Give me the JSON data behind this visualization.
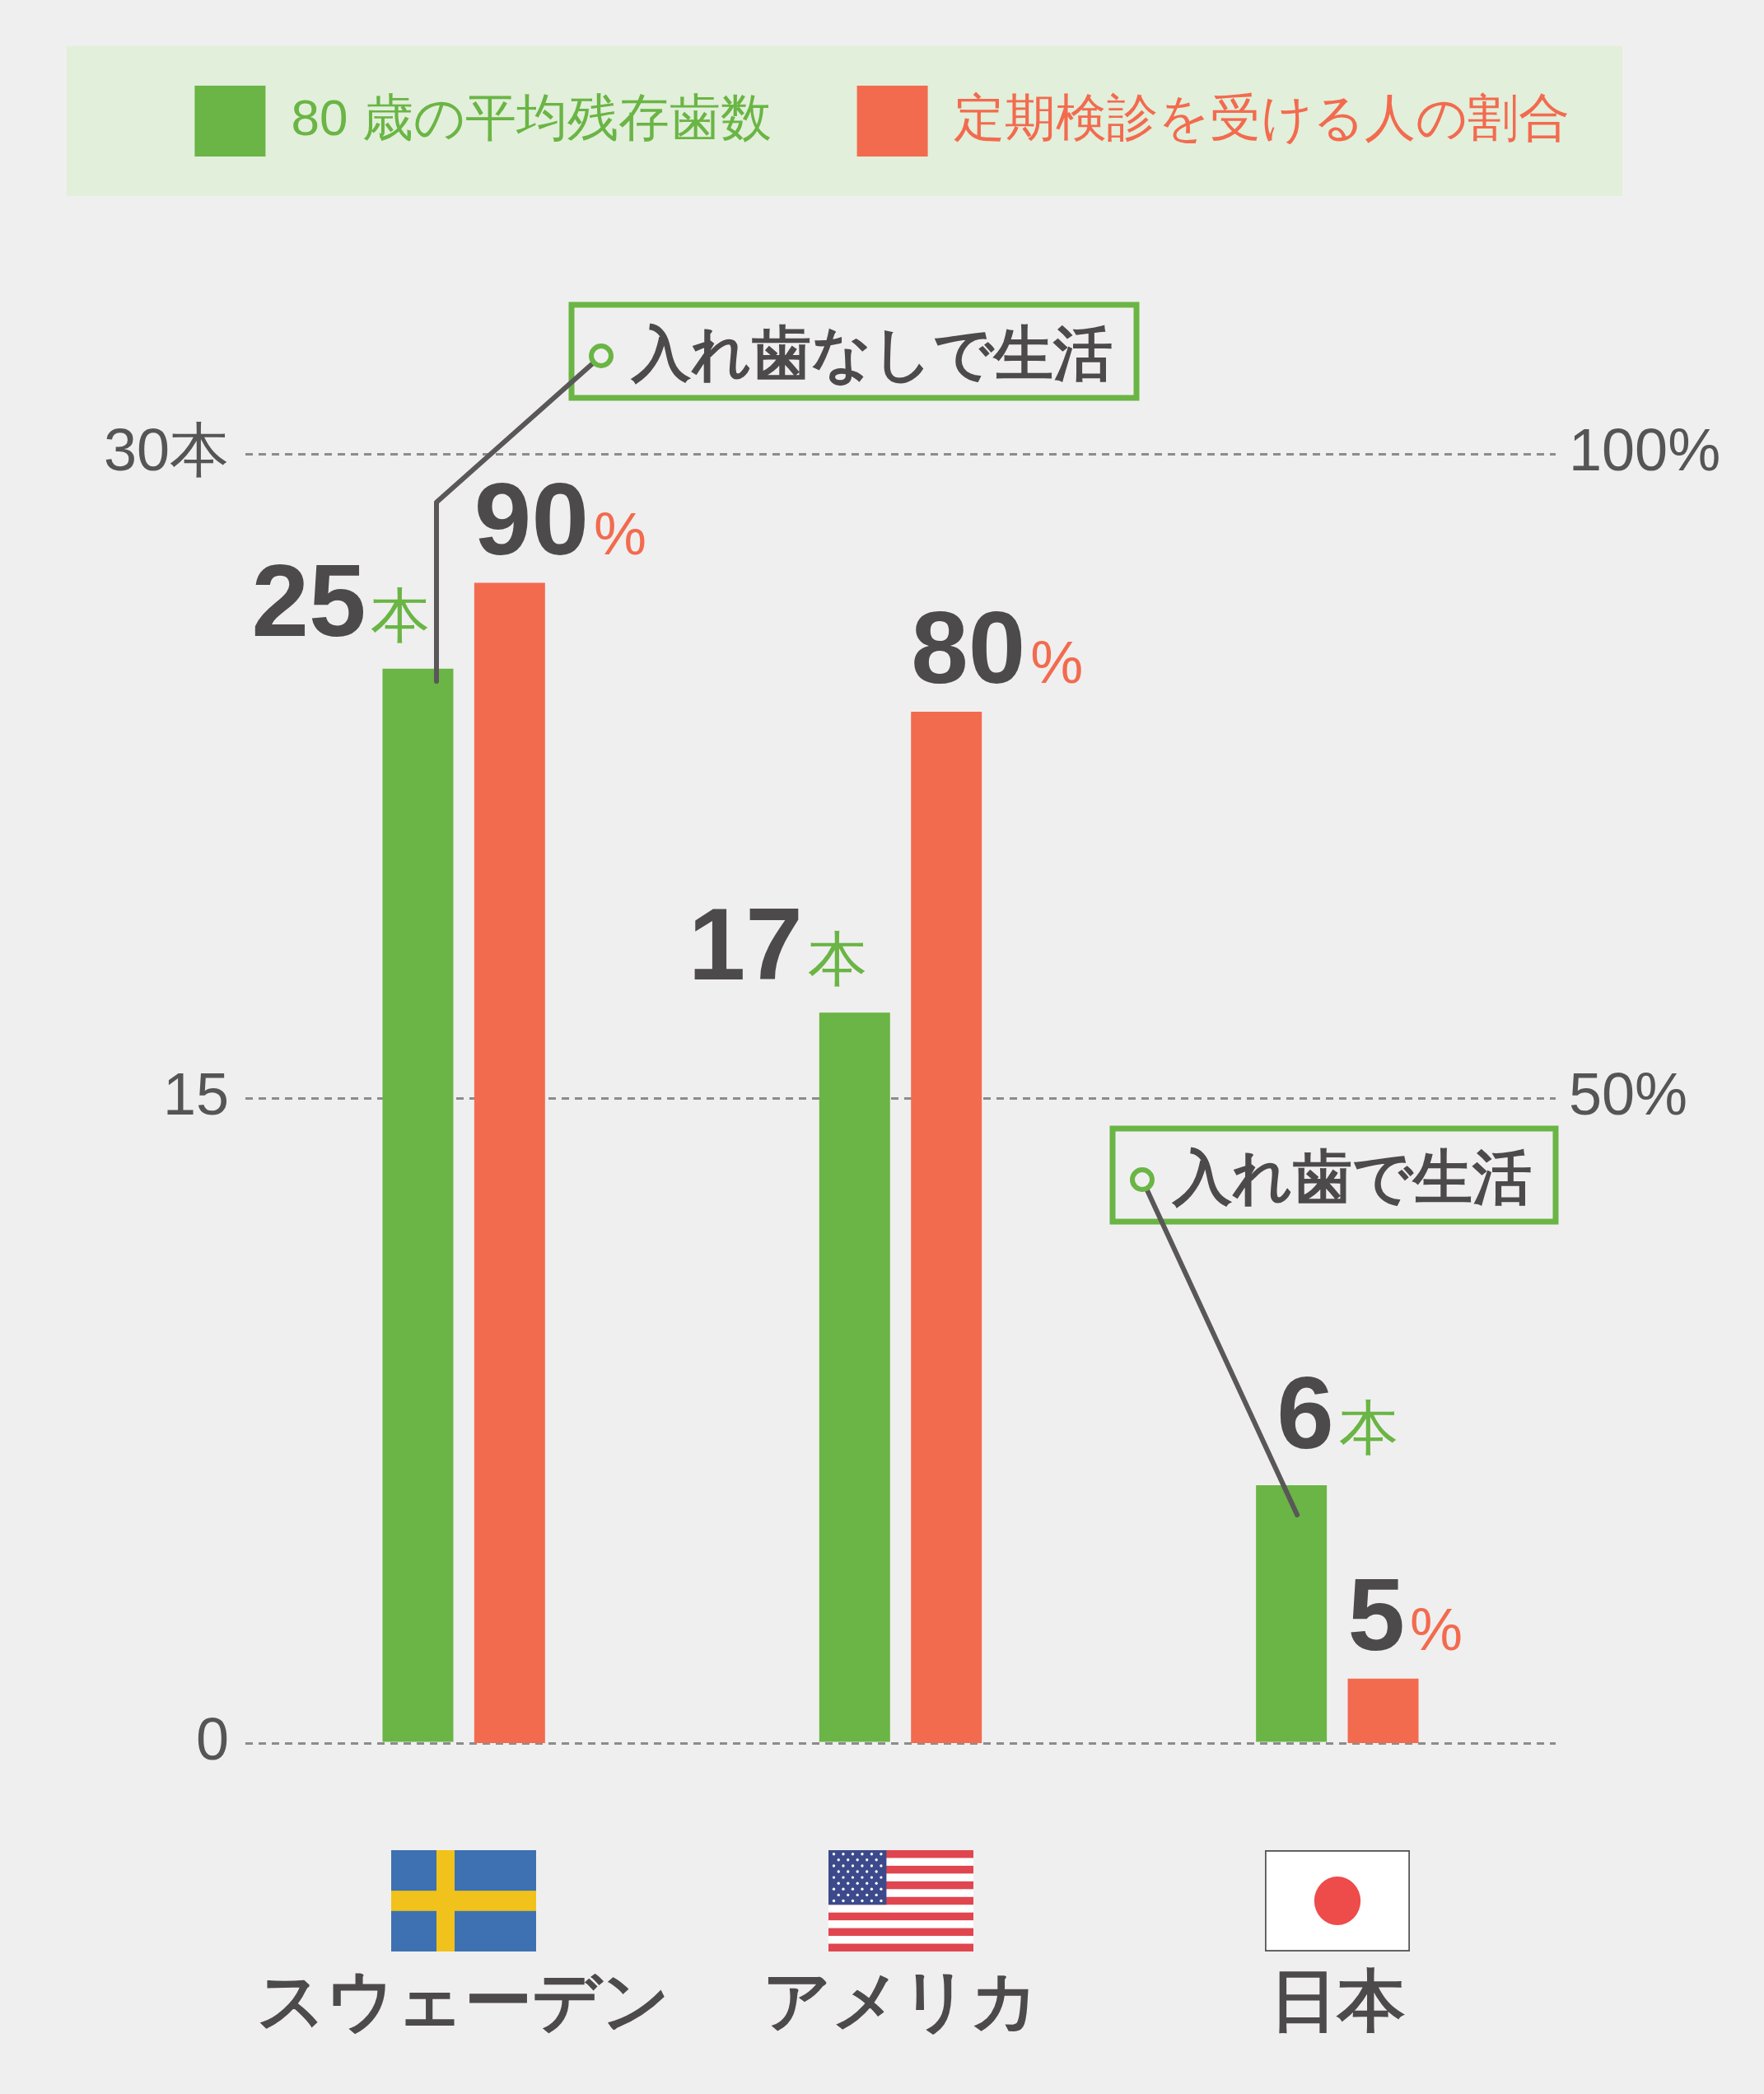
{
  "chart_data": {
    "type": "bar",
    "categories": [
      "スウェーデン",
      "アメリカ",
      "日本"
    ],
    "series": [
      {
        "name": "80 歳の平均残存歯数",
        "color": "#6ab545",
        "values": [
          25,
          17,
          6
        ],
        "value_labels": [
          "25本",
          "17本",
          "6本"
        ]
      },
      {
        "name": "定期検診を受ける人の割合",
        "color": "#f26b4f",
        "axis": "y2",
        "values": [
          90,
          80,
          5
        ],
        "value_labels": [
          "90%",
          "80%",
          "5%"
        ]
      }
    ],
    "ylim": [
      0,
      30
    ],
    "yticks": [
      0,
      15,
      {
        "value": 30,
        "label": "30本"
      }
    ],
    "y2lim": [
      0,
      100
    ],
    "y2ticks": [
      {
        "value": 50,
        "label": "50%"
      },
      {
        "value": 100,
        "label": "100%"
      }
    ],
    "grid": "y",
    "legend": "top",
    "annotations": [
      "入れ歯なしで生活",
      "入れ歯で生活"
    ]
  }
}
